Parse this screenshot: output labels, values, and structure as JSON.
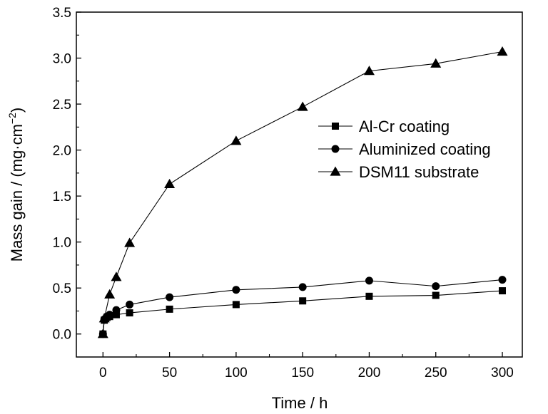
{
  "chart_data": {
    "type": "line",
    "xlabel": "Time / h",
    "ylabel_main": "Mass gain / (mg·cm",
    "ylabel_sup": "−2",
    "ylabel_close": ")",
    "xlim": [
      -20,
      315
    ],
    "ylim": [
      -0.25,
      3.5
    ],
    "xticks": [
      0,
      50,
      100,
      150,
      200,
      250,
      300
    ],
    "yticks": [
      "0.0",
      "0.5",
      "1.0",
      "1.5",
      "2.0",
      "2.5",
      "3.0",
      "3.5"
    ],
    "legend_position": "center-right",
    "grid": false,
    "series": [
      {
        "name": "Al-Cr coating",
        "marker": "square",
        "x": [
          0,
          1,
          3,
          5,
          10,
          20,
          50,
          100,
          150,
          200,
          250,
          300
        ],
        "y": [
          0.0,
          0.15,
          0.18,
          0.19,
          0.21,
          0.23,
          0.27,
          0.32,
          0.36,
          0.41,
          0.42,
          0.47
        ]
      },
      {
        "name": "Aluminized coating",
        "marker": "circle",
        "x": [
          0,
          1,
          3,
          5,
          10,
          20,
          50,
          100,
          150,
          200,
          250,
          300
        ],
        "y": [
          0.0,
          0.16,
          0.19,
          0.21,
          0.26,
          0.32,
          0.4,
          0.48,
          0.51,
          0.58,
          0.52,
          0.59
        ]
      },
      {
        "name": "DSM11 substrate",
        "marker": "triangle",
        "x": [
          0,
          1,
          5,
          10,
          20,
          50,
          100,
          150,
          200,
          250,
          300
        ],
        "y": [
          0.0,
          0.17,
          0.43,
          0.62,
          0.99,
          1.63,
          2.1,
          2.47,
          2.86,
          2.94,
          3.07
        ]
      }
    ]
  }
}
